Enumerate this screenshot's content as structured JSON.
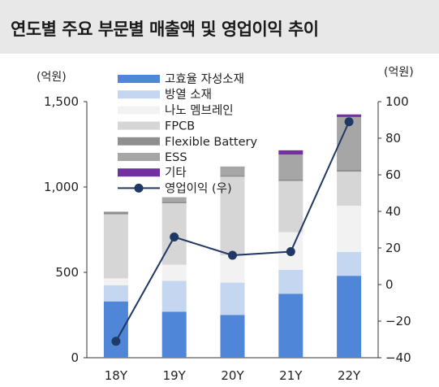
{
  "title": "연도별 주요 부문별 매출액 및 영업이익 추이",
  "chart_data": {
    "type": "bar",
    "stacked": true,
    "categories": [
      "18Y",
      "19Y",
      "20Y",
      "21Y",
      "22Y"
    ],
    "left_unit": "(억원)",
    "right_unit": "(억원)",
    "left_ylim": [
      0,
      1500
    ],
    "left_ticks": [
      "0",
      "500",
      "1,000",
      "1,500"
    ],
    "right_ylim": [
      -40,
      100
    ],
    "right_ticks": [
      "−40",
      "−20",
      "0",
      "20",
      "40",
      "60",
      "80",
      "100"
    ],
    "series": [
      {
        "name": "고효율 자성소재",
        "color": "#4f86d8",
        "values": [
          330,
          270,
          250,
          375,
          480
        ]
      },
      {
        "name": "방열 소재",
        "color": "#c5d7f0",
        "values": [
          95,
          180,
          190,
          140,
          140
        ]
      },
      {
        "name": "나노 멤브레인",
        "color": "#f2f2f2",
        "values": [
          40,
          95,
          160,
          220,
          270
        ]
      },
      {
        "name": "FPCB",
        "color": "#d6d6d6",
        "values": [
          375,
          360,
          460,
          300,
          200
        ]
      },
      {
        "name": "Flexible Battery",
        "color": "#8f8f8f",
        "values": [
          15,
          10,
          10,
          10,
          10
        ]
      },
      {
        "name": "ESS",
        "color": "#a6a6a6",
        "values": [
          0,
          25,
          50,
          145,
          310
        ]
      },
      {
        "name": "기타",
        "color": "#7030a0",
        "values": [
          0,
          0,
          0,
          25,
          15
        ]
      }
    ],
    "line": {
      "name": "영업이익 (우)",
      "color": "#1f3864",
      "values": [
        -31,
        26,
        16,
        18,
        89
      ]
    },
    "legend_position": "top-left"
  }
}
